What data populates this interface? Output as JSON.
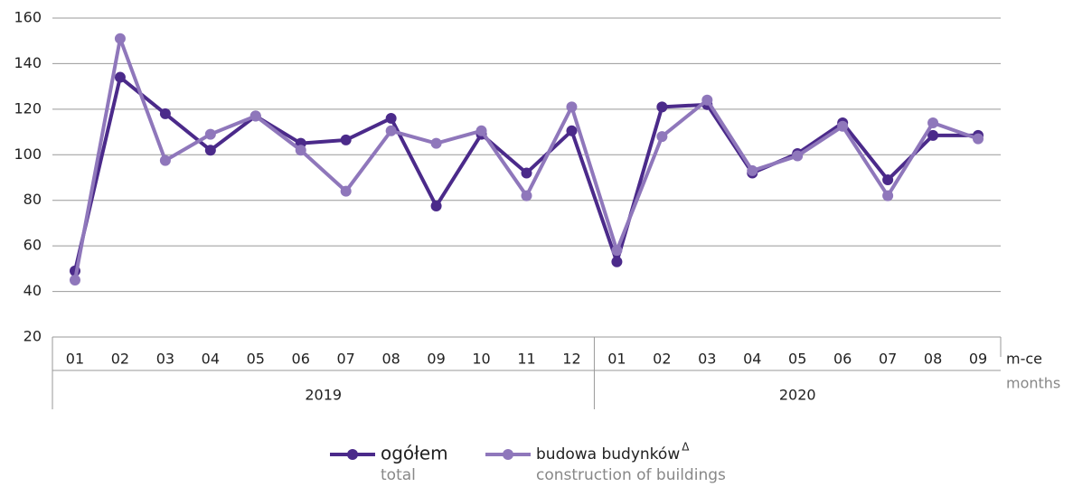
{
  "chart_data": {
    "type": "line",
    "category_groups": [
      {
        "name": "2019",
        "categories": [
          "01",
          "02",
          "03",
          "04",
          "05",
          "06",
          "07",
          "08",
          "09",
          "10",
          "11",
          "12"
        ]
      },
      {
        "name": "2020",
        "categories": [
          "01",
          "02",
          "03",
          "04",
          "05",
          "06",
          "07",
          "08",
          "09"
        ]
      }
    ],
    "x_label": "m-ce",
    "x_label_en": "months",
    "series": [
      {
        "name": "ogółem",
        "name_en": "total",
        "color": "#4b2a8a",
        "values": [
          49,
          134,
          118,
          102,
          117,
          105,
          106.5,
          116,
          77.5,
          109,
          92,
          110.5,
          53,
          121,
          122,
          92,
          100.5,
          114,
          89,
          108.5,
          108.5
        ]
      },
      {
        "name": "budowa budynków",
        "name_sup": "Δ",
        "name_en": "construction of buildings",
        "color": "#8f77bb",
        "values": [
          45,
          151,
          97.5,
          109,
          117,
          102,
          84,
          110.5,
          105,
          110.5,
          82,
          121,
          58,
          108,
          124,
          93,
          99.5,
          112.5,
          82,
          114,
          107
        ]
      }
    ],
    "ylim": [
      20,
      160
    ],
    "yticks": [
      20,
      40,
      60,
      80,
      100,
      120,
      140,
      160
    ],
    "grid": true
  }
}
